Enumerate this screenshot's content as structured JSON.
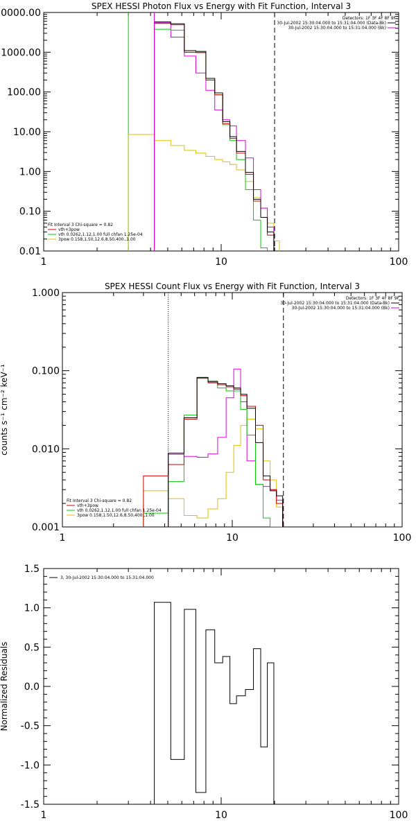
{
  "colors": {
    "black": "#000000",
    "red": "#cc0000",
    "green": "#00cc00",
    "magenta": "#dd00dd",
    "yellow": "#ddc000"
  },
  "chart_data": [
    {
      "type": "line",
      "title": "SPEX HESSI Photon Flux vs Energy with Fit Function, Interval 3",
      "xlabel": "",
      "ylabel": "",
      "xscale": "log",
      "yscale": "log",
      "xlim": [
        1,
        100
      ],
      "ylim": [
        0.01,
        10000
      ],
      "xtick_labels": [
        "1",
        "10",
        "100"
      ],
      "ytick_labels": [
        "0.01",
        "0.10",
        "1.00",
        "10.00",
        "100.00",
        "1000.00",
        "10000.00"
      ],
      "legend_top": [
        "Detectors: 1F 3F 4F 8F 9F",
        "30-Jul-2002 15:30:04.000 to 15:31:04.000 (Data-Bk)",
        "30-Jul-2002 15:30:04.000 to 15:31:04.000 (Bk)"
      ],
      "legend_bottom": [
        "Fit Interval 3   Chi-square = 0.82",
        "vth+3pow",
        "vth 0.0262,1.12,1.00  full chfan 1.25e-04",
        "3pow 0.158,1.50,12.6,8.50,400.,1.00"
      ],
      "vlines": [
        {
          "x": 4.2,
          "style": "solid",
          "color": "magenta"
        },
        {
          "x": 20.0,
          "style": "dashed",
          "color": "black"
        }
      ],
      "green_vline": 3.0,
      "bin_edges": [
        3.0,
        4.2,
        5.2,
        6.2,
        7.2,
        8.2,
        9.2,
        10.2,
        11.2,
        12.2,
        13.7,
        15.2,
        16.7,
        18.2,
        19.8,
        21.3
      ],
      "series": [
        {
          "name": "",
          "color": "black",
          "values": [
            null,
            5800,
            5200,
            1100,
            1050,
            220,
            95,
            18,
            7.5,
            3.2,
            0.95,
            0.2,
            0.07,
            0.03,
            null
          ]
        },
        {
          "name": "",
          "color": "red",
          "values": [
            null,
            5300,
            4900,
            1000,
            980,
            200,
            85,
            16,
            6.8,
            2.9,
            0.85,
            0.18,
            0.07,
            0.025,
            null
          ]
        },
        {
          "name": "",
          "color": "green",
          "values": [
            null,
            3800,
            3600,
            1000,
            1000,
            200,
            85,
            15,
            6.0,
            2.0,
            0.35,
            0.06,
            0.012,
            null,
            null
          ]
        },
        {
          "name": "",
          "color": "magenta",
          "values": [
            null,
            5500,
            2400,
            800,
            300,
            110,
            35,
            20,
            14,
            6.0,
            2.2,
            0.35,
            0.12,
            0.04,
            null
          ]
        },
        {
          "name": "",
          "color": "yellow",
          "values": [
            8.5,
            6.0,
            4.5,
            3.4,
            2.9,
            2.4,
            2.0,
            1.75,
            1.5,
            1.1,
            0.56,
            0.22,
            0.12,
            0.05,
            0.018
          ]
        }
      ]
    },
    {
      "type": "line",
      "title": "SPEX HESSI Count Flux vs Energy with Fit Function, Interval 3",
      "xlabel": "",
      "ylabel": "counts s⁻¹ cm⁻² keV⁻¹",
      "xscale": "log",
      "yscale": "log",
      "xlim": [
        1,
        100
      ],
      "ylim": [
        0.001,
        1.0
      ],
      "xtick_labels": [
        "1",
        "10",
        "100"
      ],
      "ytick_labels": [
        "0.001",
        "0.010",
        "0.100",
        "1.000"
      ],
      "legend_top": [
        "Detectors: 1F 3F 4F 8F 9F",
        "30-Jul-2002 15:30:04.000 to 15:31:04.000 (Data-Bk)",
        "30-Jul-2002 15:30:04.000 to 15:31:04.000 (Bk)"
      ],
      "legend_bottom": [
        "Fit Interval 3   Chi-square = 0.82",
        "vth+3pow",
        "vth 0.0262,1.12,1.00  full chfan 1.25e-04",
        "3pow 0.158,1.50,12.6,8.50,400.,1.00"
      ],
      "vlines": [
        {
          "x": 4.2,
          "style": "dotted",
          "color": "black"
        },
        {
          "x": 20.0,
          "style": "dashed",
          "color": "black"
        }
      ],
      "bin_edges": [
        3.0,
        4.2,
        5.2,
        6.2,
        7.2,
        8.2,
        9.2,
        10.2,
        11.2,
        12.2,
        13.7,
        15.2,
        16.7,
        18.2,
        19.8,
        21.3
      ],
      "series": [
        {
          "name": "",
          "color": "black",
          "values": [
            null,
            0.0088,
            0.025,
            0.082,
            0.072,
            0.068,
            0.064,
            0.06,
            0.05,
            0.033,
            0.012,
            0.0045,
            0.0029,
            0.0025,
            null
          ]
        },
        {
          "name": "",
          "color": "red",
          "values": [
            0.0045,
            0.0063,
            0.024,
            0.08,
            0.07,
            0.066,
            0.062,
            0.058,
            0.048,
            0.035,
            0.02,
            0.004,
            0.003,
            0.002,
            null
          ]
        },
        {
          "name": "",
          "color": "green",
          "values": [
            0.0015,
            0.0038,
            0.027,
            0.082,
            0.074,
            0.06,
            0.055,
            0.055,
            0.032,
            0.015,
            0.0035,
            0.0013,
            0.001,
            0.001,
            null
          ]
        },
        {
          "name": "",
          "color": "magenta",
          "values": [
            null,
            0.0085,
            0.008,
            0.0078,
            0.0086,
            0.014,
            0.045,
            0.105,
            0.04,
            0.007,
            0.0035,
            0.0033,
            0.003,
            0.0022,
            null
          ]
        },
        {
          "name": "",
          "color": "yellow",
          "values": [
            0.0029,
            0.0023,
            0.0014,
            0.0013,
            0.0017,
            0.0023,
            0.005,
            0.011,
            0.02,
            0.024,
            0.018,
            0.007,
            0.004,
            0.0018,
            null
          ]
        }
      ]
    },
    {
      "type": "line",
      "title": "",
      "xlabel": "",
      "ylabel": "Normalized Residuals",
      "xscale": "log",
      "yscale": "linear",
      "xlim": [
        1,
        100
      ],
      "ylim": [
        -1.5,
        1.5
      ],
      "xtick_labels": [
        "1",
        "10",
        "100"
      ],
      "ytick_labels": [
        "-1.5",
        "-1.0",
        "-0.5",
        "0.0",
        "0.5",
        "1.0",
        "1.5"
      ],
      "legend": "3, 30-Jul-2002 15:30:04.000 to 15:31:04.000",
      "bin_edges": [
        4.2,
        5.2,
        6.2,
        7.2,
        8.2,
        9.2,
        10.2,
        11.2,
        12.2,
        13.7,
        15.2,
        16.7,
        18.2,
        19.8
      ],
      "values": [
        1.07,
        -0.93,
        0.98,
        -1.35,
        0.72,
        0.3,
        0.38,
        -0.22,
        -0.12,
        -0.04,
        0.48,
        -0.77,
        0.3
      ]
    }
  ]
}
